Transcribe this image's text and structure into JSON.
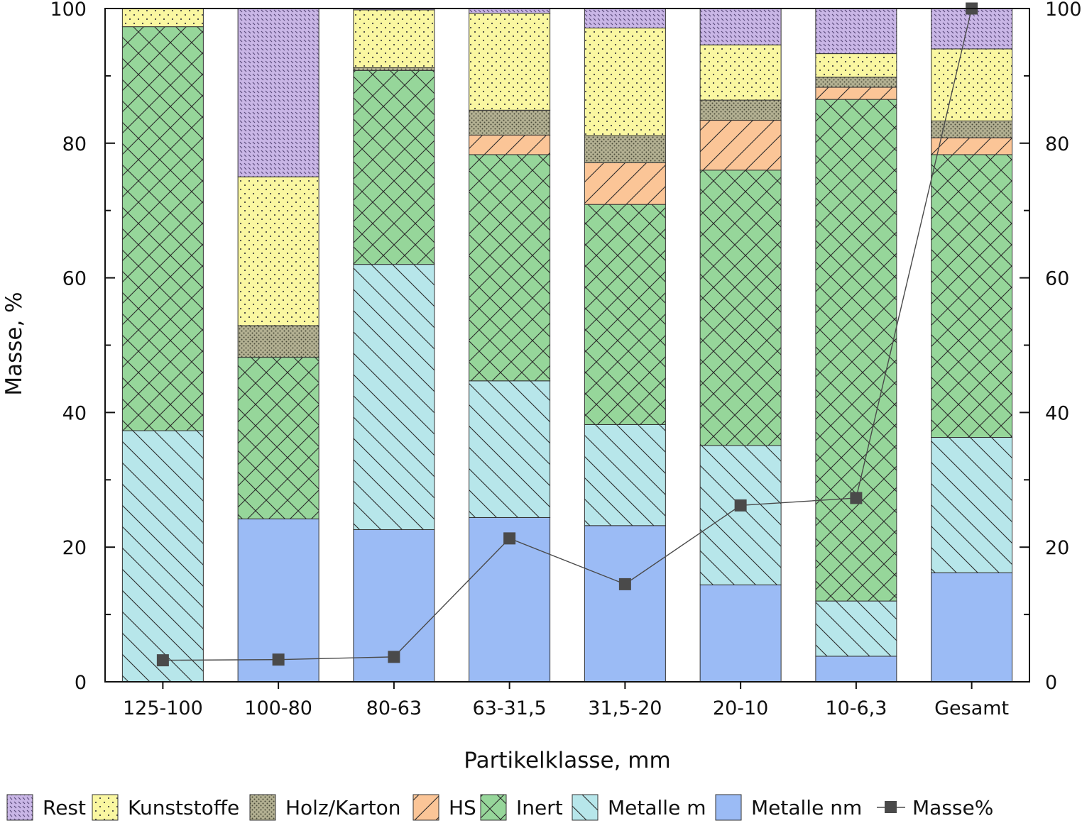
{
  "chart_data": {
    "type": "bar",
    "stacked": true,
    "xlabel": "Partikelklasse, mm",
    "ylabel": "Masse, %",
    "ylim": [
      0,
      100
    ],
    "y2lim": [
      0,
      100
    ],
    "yticks": [
      0,
      20,
      40,
      60,
      80,
      100
    ],
    "categories": [
      "125-100",
      "100-80",
      "80-63",
      "63-31,5",
      "31,5-20",
      "20-10",
      "10-6,3",
      "Gesamt"
    ],
    "series": [
      {
        "name": "Metalle nm",
        "color": "#9bbbf5",
        "pattern": "none",
        "values": [
          0,
          24.2,
          22.6,
          24.4,
          23.2,
          14.4,
          3.8,
          16.2
        ]
      },
      {
        "name": "Metalle m",
        "color": "#b7e6ea",
        "pattern": "backslash",
        "values": [
          37.3,
          0,
          39.4,
          20.3,
          15.0,
          20.7,
          8.2,
          20.1
        ]
      },
      {
        "name": "Inert",
        "color": "#96d69a",
        "pattern": "crosshatch",
        "values": [
          60.0,
          24.0,
          28.8,
          33.6,
          32.7,
          40.9,
          74.5,
          42.0
        ]
      },
      {
        "name": "HS",
        "color": "#fbc597",
        "pattern": "slash",
        "values": [
          0,
          0,
          0,
          2.9,
          6.2,
          7.4,
          1.8,
          2.5
        ]
      },
      {
        "name": "Holz/Karton",
        "color": "#b3b092",
        "pattern": "dots-dense",
        "values": [
          0,
          4.7,
          0.4,
          3.7,
          4.0,
          3.0,
          1.5,
          2.5
        ]
      },
      {
        "name": "Kunststoffe",
        "color": "#faf7a1",
        "pattern": "dots",
        "values": [
          2.7,
          22.1,
          8.6,
          14.4,
          16.0,
          8.2,
          3.5,
          10.7
        ]
      },
      {
        "name": "Rest",
        "color": "#c9b6e6",
        "pattern": "dots-diag",
        "values": [
          0,
          25.0,
          0.2,
          0.7,
          2.9,
          5.4,
          6.7,
          6.0
        ]
      }
    ],
    "line": {
      "name": "Masse%",
      "color": "#4a4a4a",
      "values": [
        3.2,
        3.3,
        3.7,
        21.3,
        14.5,
        26.2,
        27.3,
        100
      ]
    },
    "legend_order": [
      "Rest",
      "Kunststoffe",
      "Holz/Karton",
      "HS",
      "Inert",
      "Metalle m",
      "Metalle nm",
      "Masse%"
    ],
    "legend_position": "bottom",
    "grid": false
  }
}
